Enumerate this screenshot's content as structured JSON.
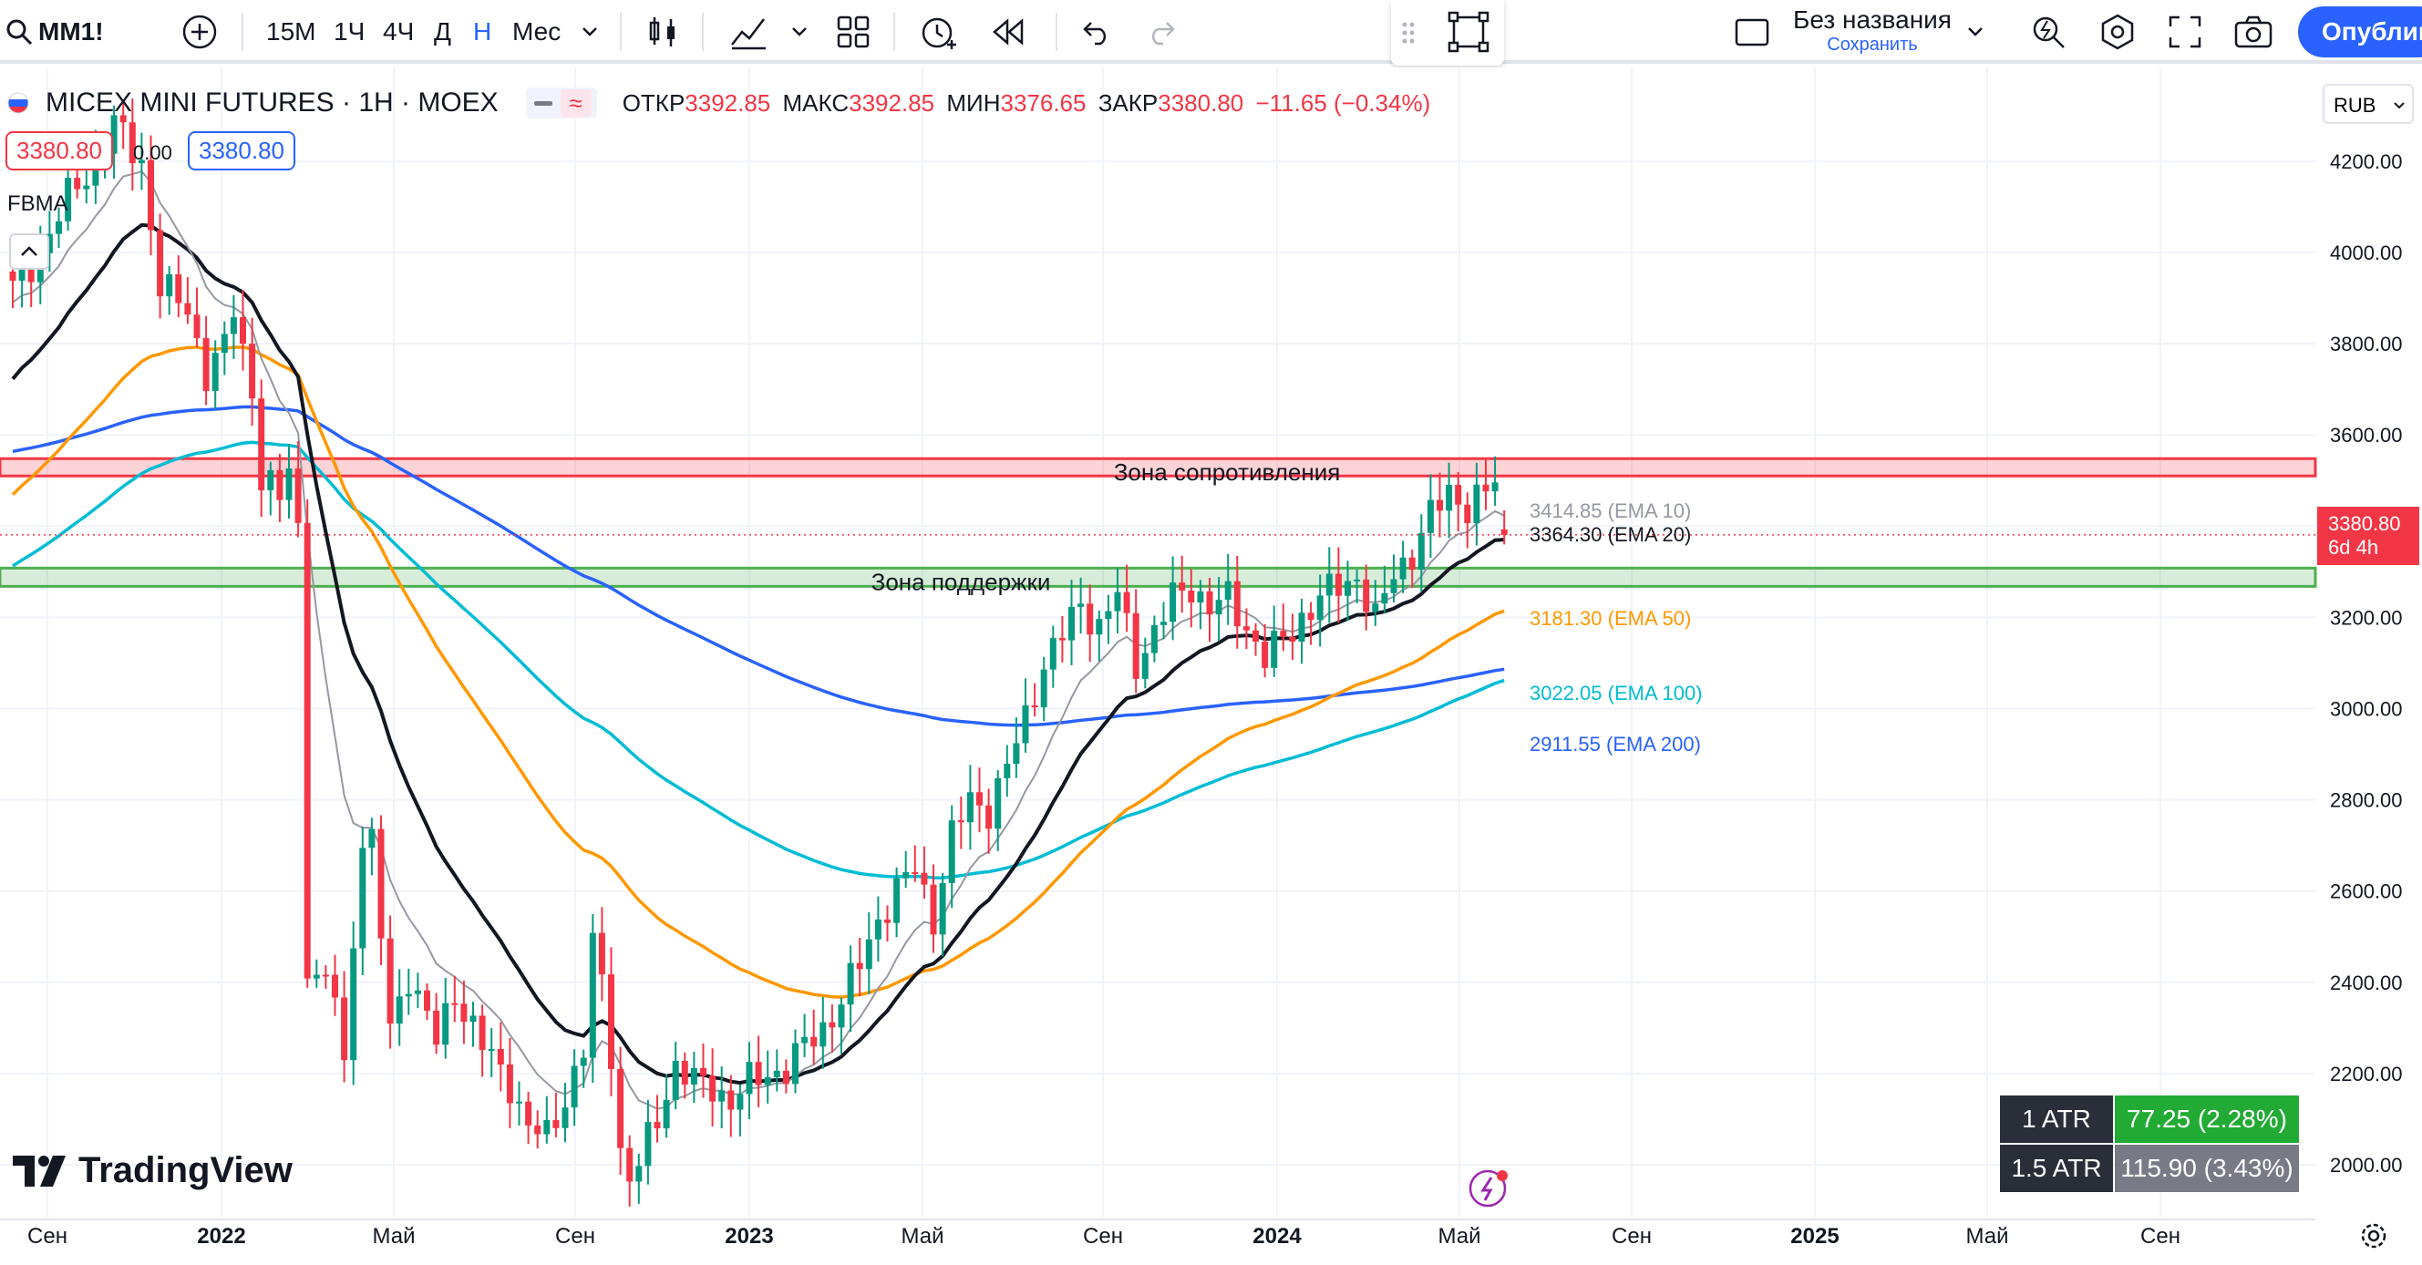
{
  "toolbar": {
    "symbol": "MM1!",
    "intervals": [
      "15M",
      "1Ч",
      "4Ч",
      "Д",
      "Н",
      "Мес"
    ],
    "active_interval": "Н",
    "layout_name": "Без названия",
    "save_label": "Сохранить",
    "publish_label": "Опублик"
  },
  "legend": {
    "title": "MICEX MINI FUTURES · 1H · MOEX",
    "open_label": "ОТКР",
    "open": "3392.85",
    "high_label": "МАКС",
    "high": "3392.85",
    "low_label": "МИН",
    "low": "3376.65",
    "close_label": "ЗАКР",
    "close": "3380.80",
    "change": "−11.65 (−0.34%)",
    "bid": "3380.80",
    "spread": "0.00",
    "ask": "3380.80",
    "indicator": "FBMA"
  },
  "currency": "RUB",
  "price_label": {
    "value": "3380.80",
    "countdown": "6d 4h"
  },
  "atr": [
    {
      "label": "1 ATR",
      "value": "77.25 (2.28%)"
    },
    {
      "label": "1.5 ATR",
      "value": "115.90 (3.43%)"
    }
  ],
  "watermark": "TradingView",
  "colors": {
    "up": "#089981",
    "down": "#f23645",
    "ema10": "#9598a1",
    "ema20": "#131722",
    "ema50": "#ff9800",
    "ema100": "#00bcd4",
    "ema200": "#2962ff"
  },
  "chart_data": {
    "type": "candlestick",
    "y_ticks": [
      2000,
      2200,
      2400,
      2600,
      2800,
      3000,
      3200,
      3400,
      3600,
      3800,
      4000,
      4200
    ],
    "x_ticks": [
      "Сен",
      "2022",
      "Май",
      "Сен",
      "2023",
      "Май",
      "Сен",
      "2024",
      "Май",
      "Сен",
      "2025",
      "Май",
      "Сен"
    ],
    "resistance_zone": {
      "label": "Зона сопротивления",
      "from": 3510,
      "to": 3548
    },
    "support_zone": {
      "label": "Зона поддержки",
      "from": 3268,
      "to": 3308
    },
    "ema_labels": [
      {
        "value": "3414.85",
        "name": "EMA 10",
        "color": "#9598a1"
      },
      {
        "value": "3364.30",
        "name": "EMA 20",
        "color": "#131722"
      },
      {
        "value": "3181.30",
        "name": "EMA 50",
        "color": "#ff9800"
      },
      {
        "value": "3022.05",
        "name": "EMA 100",
        "color": "#00bcd4"
      },
      {
        "value": "2911.55",
        "name": "EMA 200",
        "color": "#2962ff"
      }
    ],
    "last_close": 3380.8,
    "close_path": [
      {
        "week": 0,
        "close": 3920
      },
      {
        "week": 3,
        "close": 4000
      },
      {
        "week": 6,
        "close": 4120
      },
      {
        "week": 9,
        "close": 4200
      },
      {
        "week": 11,
        "close": 4280
      },
      {
        "week": 14,
        "close": 4200
      },
      {
        "week": 16,
        "close": 3920
      },
      {
        "week": 19,
        "close": 3880
      },
      {
        "week": 21,
        "close": 3730
      },
      {
        "week": 23,
        "close": 3790
      },
      {
        "week": 24,
        "close": 3880
      },
      {
        "week": 26,
        "close": 3700
      },
      {
        "week": 27,
        "close": 3500
      },
      {
        "week": 29,
        "close": 3460
      },
      {
        "week": 30,
        "close": 3530
      },
      {
        "week": 31,
        "close": 3400
      },
      {
        "week": 32,
        "close": 2450
      },
      {
        "week": 33,
        "close": 2400
      },
      {
        "week": 35,
        "close": 2380
      },
      {
        "week": 36,
        "close": 2210
      },
      {
        "week": 37,
        "close": 2500
      },
      {
        "week": 38,
        "close": 2720
      },
      {
        "week": 39,
        "close": 2700
      },
      {
        "week": 40,
        "close": 2500
      },
      {
        "week": 41,
        "close": 2300
      },
      {
        "week": 43,
        "close": 2420
      },
      {
        "week": 46,
        "close": 2270
      },
      {
        "week": 48,
        "close": 2380
      },
      {
        "week": 51,
        "close": 2260
      },
      {
        "week": 54,
        "close": 2180
      },
      {
        "week": 56,
        "close": 2080
      },
      {
        "week": 58,
        "close": 2060
      },
      {
        "week": 60,
        "close": 2150
      },
      {
        "week": 62,
        "close": 2250
      },
      {
        "week": 63,
        "close": 2480
      },
      {
        "week": 64,
        "close": 2400
      },
      {
        "week": 65,
        "close": 2250
      },
      {
        "week": 66,
        "close": 2030
      },
      {
        "week": 67,
        "close": 1970
      },
      {
        "week": 68,
        "close": 2000
      },
      {
        "week": 70,
        "close": 2100
      },
      {
        "week": 72,
        "close": 2220
      },
      {
        "week": 74,
        "close": 2180
      },
      {
        "week": 76,
        "close": 2170
      },
      {
        "week": 78,
        "close": 2140
      },
      {
        "week": 80,
        "close": 2180
      },
      {
        "week": 82,
        "close": 2200
      },
      {
        "week": 84,
        "close": 2210
      },
      {
        "week": 86,
        "close": 2260
      },
      {
        "week": 88,
        "close": 2300
      },
      {
        "week": 90,
        "close": 2360
      },
      {
        "week": 92,
        "close": 2440
      },
      {
        "week": 94,
        "close": 2540
      },
      {
        "week": 96,
        "close": 2600
      },
      {
        "week": 98,
        "close": 2650
      },
      {
        "week": 100,
        "close": 2540
      },
      {
        "week": 102,
        "close": 2720
      },
      {
        "week": 104,
        "close": 2800
      },
      {
        "week": 106,
        "close": 2780
      },
      {
        "week": 108,
        "close": 2870
      },
      {
        "week": 110,
        "close": 2980
      },
      {
        "week": 112,
        "close": 3100
      },
      {
        "week": 114,
        "close": 3160
      },
      {
        "week": 116,
        "close": 3230
      },
      {
        "week": 118,
        "close": 3180
      },
      {
        "week": 120,
        "close": 3250
      },
      {
        "week": 122,
        "close": 3100
      },
      {
        "week": 124,
        "close": 3170
      },
      {
        "week": 126,
        "close": 3240
      },
      {
        "week": 128,
        "close": 3270
      },
      {
        "week": 130,
        "close": 3220
      },
      {
        "week": 132,
        "close": 3240
      },
      {
        "week": 134,
        "close": 3180
      },
      {
        "week": 136,
        "close": 3110
      },
      {
        "week": 138,
        "close": 3150
      },
      {
        "week": 140,
        "close": 3200
      },
      {
        "week": 142,
        "close": 3240
      },
      {
        "week": 144,
        "close": 3270
      },
      {
        "week": 146,
        "close": 3290
      },
      {
        "week": 148,
        "close": 3190
      },
      {
        "week": 150,
        "close": 3300
      },
      {
        "week": 152,
        "close": 3340
      },
      {
        "week": 154,
        "close": 3420
      },
      {
        "week": 156,
        "close": 3480
      },
      {
        "week": 158,
        "close": 3440
      },
      {
        "week": 160,
        "close": 3470
      },
      {
        "week": 161,
        "close": 3500
      },
      {
        "week": 162,
        "close": 3380.8
      }
    ]
  }
}
